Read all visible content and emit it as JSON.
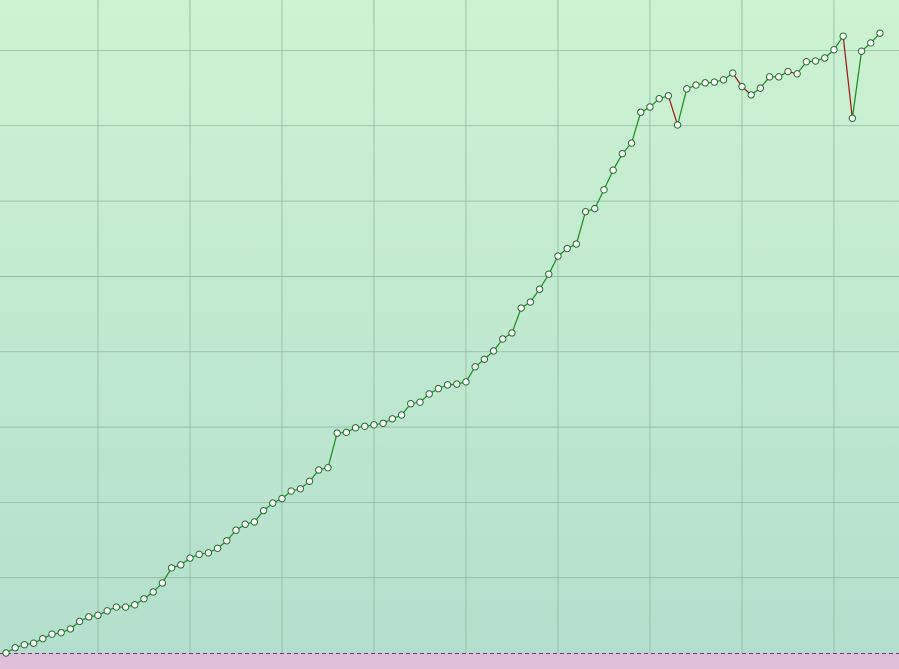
{
  "chart_data": {
    "type": "line",
    "x": [
      0,
      1,
      2,
      3,
      4,
      5,
      6,
      7,
      8,
      9,
      10,
      11,
      12,
      13,
      14,
      15,
      16,
      17,
      18,
      19,
      20,
      21,
      22,
      23,
      24,
      25,
      26,
      27,
      28,
      29,
      30,
      31,
      32,
      33,
      34,
      35,
      36,
      37,
      38,
      39,
      40,
      41,
      42,
      43,
      44,
      45,
      46,
      47,
      48,
      49,
      50,
      51,
      52,
      53,
      54,
      55,
      56,
      57,
      58,
      59,
      60,
      61,
      62,
      63,
      64,
      65,
      66,
      67,
      68,
      69,
      70,
      71,
      72,
      73,
      74,
      75,
      76,
      77,
      78,
      79,
      80,
      81,
      82,
      83,
      84,
      85,
      86,
      87,
      88,
      89,
      90,
      91,
      92,
      93,
      94,
      95
    ],
    "series": [
      {
        "color": "#1b8a1b",
        "down_color": "#a01212",
        "marker_color": "#1f6f2a",
        "values": [
          0,
          0.07,
          0.11,
          0.13,
          0.19,
          0.25,
          0.27,
          0.32,
          0.42,
          0.48,
          0.5,
          0.56,
          0.61,
          0.61,
          0.64,
          0.72,
          0.81,
          0.93,
          1.13,
          1.17,
          1.26,
          1.31,
          1.33,
          1.39,
          1.49,
          1.63,
          1.71,
          1.74,
          1.89,
          1.99,
          2.05,
          2.15,
          2.18,
          2.28,
          2.43,
          2.46,
          2.92,
          2.93,
          2.99,
          3.01,
          3.03,
          3.05,
          3.11,
          3.16,
          3.31,
          3.33,
          3.44,
          3.51,
          3.56,
          3.57,
          3.6,
          3.8,
          3.9,
          4.01,
          4.17,
          4.25,
          4.58,
          4.66,
          4.83,
          5.03,
          5.27,
          5.37,
          5.43,
          5.86,
          5.9,
          6.15,
          6.41,
          6.63,
          6.77,
          7.18,
          7.25,
          7.36,
          7.4,
          7.01,
          7.49,
          7.54,
          7.57,
          7.58,
          7.61,
          7.7,
          7.52,
          7.41,
          7.5,
          7.65,
          7.65,
          7.72,
          7.69,
          7.85,
          7.86,
          7.9,
          8.01,
          8.19,
          7.1,
          7.99,
          8.1,
          8.23
        ]
      }
    ],
    "xlim": [
      -0.65,
      97.07
    ],
    "ylim": [
      0,
      8.67
    ],
    "xticks": [
      10,
      20,
      30,
      40,
      50,
      60,
      70,
      80,
      90
    ],
    "yticks": [
      1,
      2,
      3,
      4,
      5,
      6,
      7,
      8
    ],
    "grid": true
  }
}
